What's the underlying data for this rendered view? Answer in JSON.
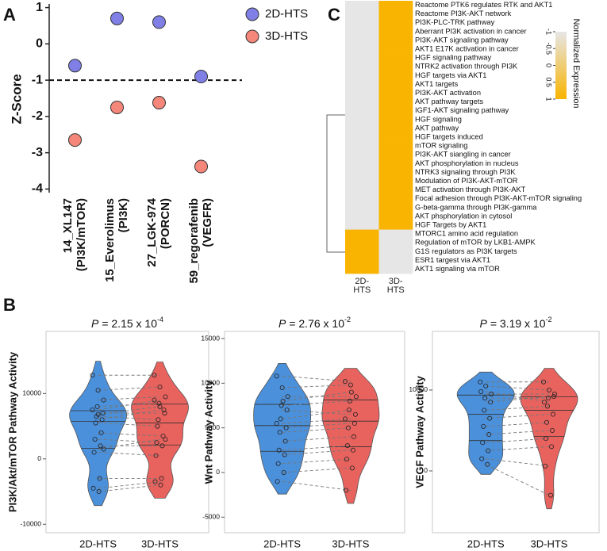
{
  "panel_labels": [
    "A",
    "B",
    "C"
  ],
  "chart_data": [
    {
      "type": "dot",
      "ylabel": "Z-Score",
      "categories": [
        "14_XL147\n(PI3K/mTOR)",
        "15_Everolimus\n(PI3K)",
        "27_LGK-974\n(PORCN)",
        "59_regorafenib\n(VEGFR)"
      ],
      "series": [
        {
          "name": "2D-HTS",
          "color": "#7f7fe6",
          "values": [
            -0.6,
            0.7,
            0.6,
            -0.9
          ]
        },
        {
          "name": "3D-HTS",
          "color": "#f4877a",
          "values": [
            -2.65,
            -1.75,
            -1.62,
            -3.38
          ]
        }
      ],
      "hline": -1,
      "ylim": [
        -4.1,
        1.1
      ],
      "yticks": [
        -4,
        -3,
        -2,
        -1,
        0,
        1
      ]
    },
    {
      "type": "heatmap",
      "colorbar_title": "Normalized Expression",
      "colorbar_ticks": [
        -1,
        -0.5,
        0,
        0.5,
        1
      ],
      "colors": [
        "#e6e6e6",
        "#f8b400"
      ],
      "clim": [
        -1,
        1
      ],
      "columns": [
        "2D-\nHTS",
        "3D-\nHTS"
      ],
      "rows": [
        "Reactome PTK6 regulates RTK and AKT1",
        "Reactome PI3K-AKT network",
        "PI3K-PLC-TRK pathway",
        "Aberrant PI3K activation in cancer",
        "PI3K-AKT signaling pathway",
        "AKT1 E17K activation in cancer",
        "HGF signaling pathway",
        "NTRK2 activation through PI3K",
        "HGF targets via AKT1",
        "AKT1 targets",
        "PI3K-AKT activation",
        "AKT pathway targets",
        "IGF1-AKT signaling pathway",
        "HGF signaling",
        "AKT pathway",
        "HGF targets induced",
        "mTOR signaling",
        "PI3K-AKT siangling in cancer",
        "AKT phosphorylation in nucleus",
        "NTRK3 signaling through PI3K",
        "Modulation of PI3K-AKT-mTOR",
        "MET activation through PI3K-AKT",
        "Focal adhesion through PI3K-AKT-mTOR signaling",
        "G-beta-gamma through PI3K-gamma",
        "AKT phsphorylation in cytosol",
        "HGF Targets by AKT1",
        "MTORC1 amino acid regulation",
        "Regulation of mTOR by LKB1-AMPK",
        "G1S regulators as PI3K targets",
        "ESR1 targest via AKT1",
        "AKT1 signaling via mTOR"
      ],
      "values": [
        [
          -1,
          1
        ],
        [
          -1,
          1
        ],
        [
          -1,
          1
        ],
        [
          -1,
          1
        ],
        [
          -1,
          1
        ],
        [
          -1,
          1
        ],
        [
          -1,
          1
        ],
        [
          -1,
          1
        ],
        [
          -1,
          1
        ],
        [
          -1,
          1
        ],
        [
          -1,
          1
        ],
        [
          -1,
          1
        ],
        [
          -1,
          1
        ],
        [
          -1,
          1
        ],
        [
          -1,
          1
        ],
        [
          -1,
          1
        ],
        [
          -1,
          1
        ],
        [
          -1,
          1
        ],
        [
          -1,
          1
        ],
        [
          -1,
          1
        ],
        [
          -1,
          1
        ],
        [
          -1,
          1
        ],
        [
          -1,
          1
        ],
        [
          -1,
          1
        ],
        [
          -1,
          1
        ],
        [
          -1,
          1
        ],
        [
          1,
          -1
        ],
        [
          1,
          -1
        ],
        [
          1,
          -1
        ],
        [
          1,
          -1
        ],
        [
          1,
          -1
        ]
      ]
    },
    {
      "type": "violin",
      "stat_label": "P",
      "stat_text": "= 2.15 x 10",
      "stat_exponent": "-4",
      "ylabel": "PI3K/Akt/mTOR Pathway Activity",
      "categories": [
        "2D-HTS",
        "3D-HTS"
      ],
      "series": [
        {
          "name": "2D-HTS",
          "color": "#4b90db",
          "values": [
            12800,
            10500,
            9000,
            8000,
            7000,
            6500,
            6000,
            5500,
            4000,
            3000,
            2000,
            1000,
            -3000,
            -4500,
            -5000,
            7500,
            6800,
            1500
          ]
        },
        {
          "name": "3D-HTS",
          "color": "#e8625e",
          "values": [
            12800,
            11000,
            9500,
            8500,
            7000,
            6000,
            7500,
            5000,
            3500,
            2500,
            2000,
            500,
            -3000,
            -3500,
            -4000,
            9000,
            8000,
            3000
          ]
        }
      ],
      "ylim": [
        -11300,
        19500
      ],
      "yticks": [
        -10000,
        0,
        10000
      ]
    },
    {
      "type": "violin",
      "stat_label": "P",
      "stat_text": "= 2.76 x 10",
      "stat_exponent": "-2",
      "ylabel": "Wnt Pathway Activity",
      "categories": [
        "2D-HTS",
        "3D-HTS"
      ],
      "series": [
        {
          "name": "2D-HTS",
          "color": "#4b90db",
          "values": [
            10800,
            9500,
            8500,
            7500,
            7000,
            6000,
            5000,
            4500,
            3500,
            2500,
            2000,
            1000,
            0,
            -1000,
            8000,
            5500
          ]
        },
        {
          "name": "3D-HTS",
          "color": "#e8625e",
          "values": [
            10200,
            9800,
            8500,
            8000,
            6500,
            7000,
            5500,
            5000,
            4000,
            3000,
            2500,
            1500,
            500,
            -2000,
            9000,
            6000
          ]
        }
      ],
      "ylim": [
        -6750,
        15800
      ],
      "yticks": [
        -5000,
        0,
        5000,
        10000,
        15000
      ]
    },
    {
      "type": "violin",
      "stat_label": "P",
      "stat_text": "= 3.19 x 10",
      "stat_exponent": "-2",
      "ylabel": "VEGF Pathway Activity",
      "categories": [
        "2D-HTS",
        "3D-HTS"
      ],
      "series": [
        {
          "name": "2D-HTS",
          "color": "#4b90db",
          "values": [
            11000,
            10500,
            9500,
            9000,
            8500,
            7500,
            6500,
            5500,
            4500,
            3500,
            2500,
            1500,
            800,
            9800
          ]
        },
        {
          "name": "3D-HTS",
          "color": "#e8625e",
          "values": [
            11000,
            10000,
            9500,
            9000,
            9200,
            8000,
            7000,
            6000,
            5000,
            4000,
            3000,
            600,
            -3000,
            8500
          ]
        }
      ],
      "ylim": [
        -7650,
        17250
      ],
      "yticks": [
        0,
        10000
      ]
    }
  ]
}
